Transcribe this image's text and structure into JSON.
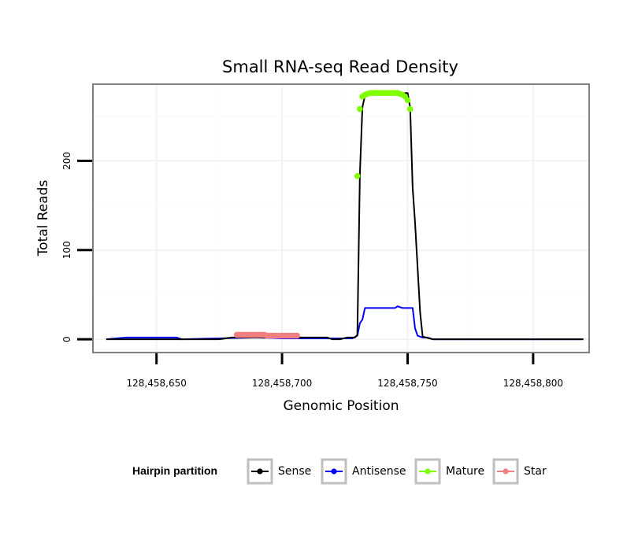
{
  "chart_data": {
    "type": "line",
    "title": "Small RNA-seq Read Density",
    "xlabel": "Genomic Position",
    "ylabel": "Total Reads",
    "xlim": [
      128458625,
      128458822
    ],
    "ylim": [
      -14,
      285
    ],
    "x_ticks": [
      128458650,
      128458700,
      128458750,
      128458800
    ],
    "x_tick_labels": [
      "128,458,650",
      "128,458,700",
      "128,458,750",
      "128,458,800"
    ],
    "y_ticks": [
      0,
      100,
      200
    ],
    "y_tick_labels": [
      "0",
      "100",
      "200"
    ],
    "grid": true,
    "legend": {
      "title": "Hairpin partition",
      "position": "bottom",
      "entries": [
        {
          "name": "Sense",
          "color": "#000000"
        },
        {
          "name": "Antisense",
          "color": "#0000ff"
        },
        {
          "name": "Mature",
          "color": "#7fff00"
        },
        {
          "name": "Star",
          "color": "#f08080"
        }
      ]
    },
    "series": [
      {
        "name": "Sense",
        "color": "#000000",
        "style": "line",
        "x": [
          128458630,
          128458660,
          128458675,
          128458680,
          128458700,
          128458718,
          128458720,
          128458723,
          128458726,
          128458729,
          128458730,
          128458731,
          128458732,
          128458733,
          128458735,
          128458750,
          128458751,
          128458752,
          128458753,
          128458754,
          128458755,
          128458756,
          128458760,
          128458820
        ],
        "y": [
          0,
          0,
          0,
          2,
          2,
          2,
          0,
          0,
          2,
          2,
          5,
          185,
          260,
          273,
          276,
          276,
          260,
          170,
          130,
          80,
          30,
          3,
          0,
          0
        ]
      },
      {
        "name": "Antisense",
        "color": "#0000ff",
        "style": "line",
        "x": [
          128458630,
          128458638,
          128458658,
          128458660,
          128458690,
          128458700,
          128458728,
          128458730,
          128458731,
          128458732,
          128458733,
          128458745,
          128458746,
          128458748,
          128458752,
          128458753,
          128458754,
          128458756,
          128458758,
          128458760,
          128458820
        ],
        "y": [
          0,
          2,
          2,
          0,
          2,
          1,
          1,
          4,
          18,
          22,
          35,
          35,
          37,
          35,
          35,
          12,
          4,
          2,
          2,
          0,
          0
        ]
      },
      {
        "name": "Mature",
        "color": "#7fff00",
        "style": "points",
        "x": [
          128458730,
          128458731,
          128458732,
          128458733,
          128458734,
          128458735,
          128458736,
          128458737,
          128458738,
          128458739,
          128458740,
          128458741,
          128458742,
          128458743,
          128458744,
          128458745,
          128458746,
          128458747,
          128458748,
          128458749,
          128458750,
          128458751
        ],
        "y": [
          183,
          258,
          272,
          274,
          275,
          276,
          276,
          276,
          276,
          276,
          276,
          276,
          276,
          276,
          276,
          276,
          276,
          275,
          274,
          272,
          268,
          258
        ]
      },
      {
        "name": "Star",
        "color": "#f08080",
        "style": "points",
        "x": [
          128458682,
          128458683,
          128458684,
          128458685,
          128458686,
          128458687,
          128458688,
          128458689,
          128458690,
          128458691,
          128458692,
          128458693,
          128458694,
          128458695,
          128458696,
          128458697,
          128458698,
          128458699,
          128458700,
          128458701,
          128458702,
          128458703,
          128458704,
          128458705,
          128458706
        ],
        "y": [
          5,
          5,
          5,
          5,
          5,
          5,
          5,
          5,
          5,
          5,
          5,
          5,
          4,
          4,
          4,
          4,
          4,
          4,
          4,
          4,
          4,
          4,
          4,
          4,
          4
        ]
      }
    ]
  }
}
